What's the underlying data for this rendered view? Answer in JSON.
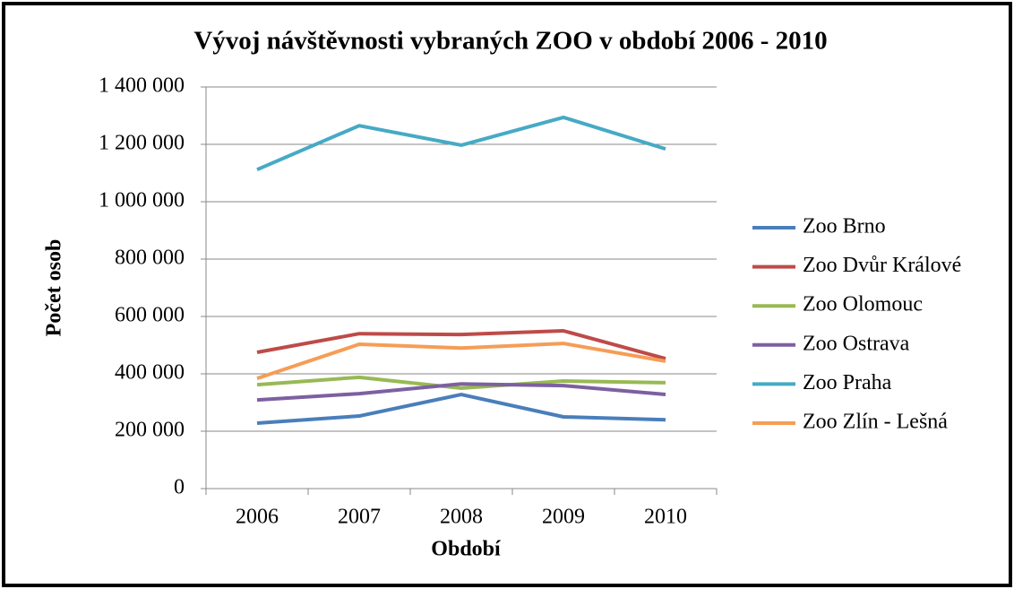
{
  "chart_data": {
    "type": "line",
    "title": "Vývoj návštěvnosti vybraných ZOO v období 2006 - 2010",
    "x_label": "Období",
    "y_label": "Počet osob",
    "categories": [
      "2006",
      "2007",
      "2008",
      "2009",
      "2010"
    ],
    "series": [
      {
        "name": "Zoo Brno",
        "color": "#4a7ebb",
        "values": [
          228000,
          253000,
          328000,
          250000,
          240000
        ]
      },
      {
        "name": "Zoo Dvůr Králové",
        "color": "#be4b48",
        "values": [
          475000,
          540000,
          537000,
          550000,
          453000
        ]
      },
      {
        "name": "Zoo Olomouc",
        "color": "#98b954",
        "values": [
          362000,
          388000,
          350000,
          375000,
          369000
        ]
      },
      {
        "name": "Zoo Ostrava",
        "color": "#7d60a0",
        "values": [
          309000,
          331000,
          365000,
          359000,
          328000
        ]
      },
      {
        "name": "Zoo Praha",
        "color": "#46aac5",
        "values": [
          1112000,
          1265000,
          1197000,
          1294000,
          1184000
        ]
      },
      {
        "name": "Zoo Zlín - Lešná",
        "color": "#f59d56",
        "values": [
          384000,
          503000,
          490000,
          506000,
          444000
        ]
      }
    ],
    "ylim": [
      0,
      1400000
    ],
    "yticks": [
      0,
      {
        "value": 200000,
        "label": "200 000"
      },
      {
        "value": 400000,
        "label": "400 000"
      },
      {
        "value": 600000,
        "label": "600 000"
      },
      {
        "value": 800000,
        "label": "800 000"
      },
      {
        "value": 1000000,
        "label": "1 000 000"
      },
      {
        "value": 1200000,
        "label": "1 200 000"
      },
      {
        "value": 1400000,
        "label": "1 400 000"
      }
    ],
    "grid": true,
    "legend": "right"
  }
}
